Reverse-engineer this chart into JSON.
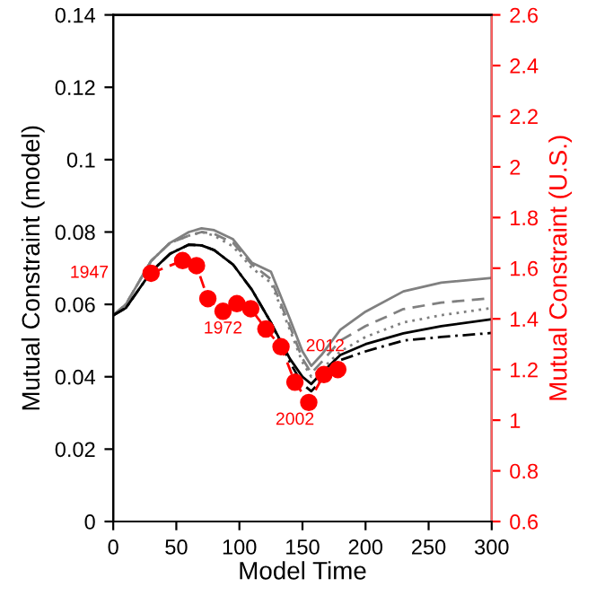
{
  "chart_data": {
    "type": "line",
    "xlabel": "Model Time",
    "ylabel": "Mutual Constraint (model)",
    "y2label": "Mutual Constraint (U.S.)",
    "x": [
      0,
      10,
      20,
      30,
      45,
      60,
      70,
      80,
      95,
      110,
      125,
      140,
      150,
      157,
      165,
      180,
      200,
      230,
      260,
      300
    ],
    "series": [
      {
        "color": "#808080",
        "line_style": "solid",
        "values": [
          0.057,
          0.06,
          0.066,
          0.072,
          0.077,
          0.08,
          0.081,
          0.0805,
          0.078,
          0.0715,
          0.069,
          0.056,
          0.047,
          0.043,
          0.046,
          0.053,
          0.058,
          0.0636,
          0.066,
          0.0673
        ]
      },
      {
        "color": "#808080",
        "line_style": "dashed",
        "values": [
          0.057,
          0.06,
          0.066,
          0.072,
          0.077,
          0.079,
          0.08,
          0.0795,
          0.077,
          0.071,
          0.067,
          0.054,
          0.045,
          0.041,
          0.044,
          0.05,
          0.054,
          0.0587,
          0.0605,
          0.0617
        ]
      },
      {
        "color": "#808080",
        "line_style": "dotted",
        "values": [
          0.057,
          0.06,
          0.066,
          0.072,
          0.077,
          0.079,
          0.08,
          0.079,
          0.076,
          0.07,
          0.066,
          0.053,
          0.044,
          0.04,
          0.042,
          0.047,
          0.051,
          0.055,
          0.057,
          0.059
        ]
      },
      {
        "color": "#000000",
        "line_style": "solid",
        "values": [
          0.057,
          0.059,
          0.064,
          0.069,
          0.074,
          0.0765,
          0.0763,
          0.075,
          0.071,
          0.064,
          0.055,
          0.045,
          0.04,
          0.038,
          0.041,
          0.046,
          0.049,
          0.052,
          0.054,
          0.0559
        ]
      },
      {
        "color": "#000000",
        "line_style": "dashdot",
        "values": [
          0.057,
          0.059,
          0.064,
          0.069,
          0.074,
          0.0765,
          0.0763,
          0.075,
          0.071,
          0.064,
          0.055,
          0.044,
          0.038,
          0.036,
          0.039,
          0.0446,
          0.047,
          0.05,
          0.051,
          0.0521
        ]
      },
      {
        "color": "#ff0000",
        "axis": "y2",
        "line_style": "dashed",
        "marker": "circle",
        "x": [
          30,
          55,
          66,
          75,
          87,
          98,
          109,
          121,
          133,
          144,
          155,
          167,
          178
        ],
        "values": [
          1.58,
          1.63,
          1.61,
          1.48,
          1.43,
          1.46,
          1.44,
          1.36,
          1.29,
          1.15,
          1.07,
          1.18,
          1.2
        ]
      }
    ],
    "annotations": [
      "1947",
      "1972",
      "2002",
      "2012"
    ],
    "xlim": [
      0,
      300
    ],
    "xticks": [
      0,
      50,
      100,
      150,
      200,
      250,
      300
    ],
    "ylim": [
      0,
      0.14
    ],
    "yticks": [
      0,
      0.02,
      0.04,
      0.06,
      0.08,
      0.1,
      0.12,
      0.14
    ],
    "y2lim": [
      0.6,
      2.6
    ],
    "y2ticks": [
      0.6,
      0.8,
      1,
      1.2,
      1.4,
      1.6,
      1.8,
      2,
      2.2,
      2.4,
      2.6
    ],
    "grid": false,
    "legend": false
  }
}
